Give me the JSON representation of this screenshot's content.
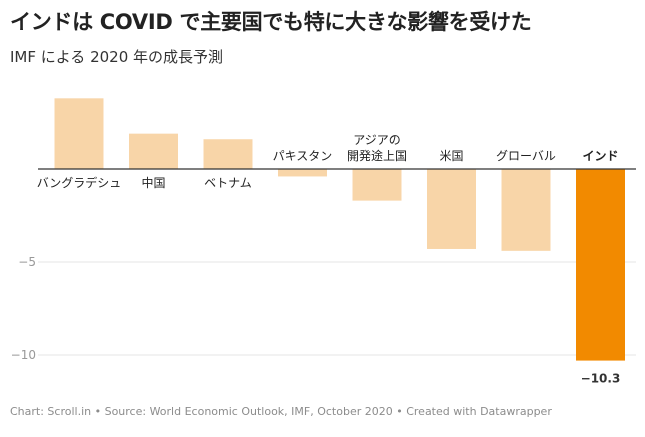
{
  "header": {
    "title": "インドは COVID で主要国でも特に大きな影響を受けた",
    "subtitle": "IMF による 2020 年の成長予測"
  },
  "footer": {
    "credit": "Chart: Scroll.in • Source: World Economic Outlook, IMF, October 2020 • Created with Datawrapper"
  },
  "chart_data": {
    "type": "bar",
    "title": "インドは COVID で主要国でも特に大きな影響を受けた",
    "subtitle": "IMF による 2020 年の成長予測",
    "categories": [
      "バングラデシュ",
      "中国",
      "ベトナム",
      "パキスタン",
      "アジアの 開発途上国",
      "米国",
      "グローバル",
      "インド"
    ],
    "values": [
      3.8,
      1.9,
      1.6,
      -0.4,
      -1.7,
      -4.3,
      -4.4,
      -10.3
    ],
    "highlight_index": 7,
    "highlight_label": "−10.3",
    "y_ticks": [
      -5,
      -10
    ],
    "y_tick_labels": [
      "−5",
      "−10"
    ],
    "ylim": [
      -10.3,
      3.8
    ],
    "grid": true,
    "colors": {
      "default_bar": "#f8d5a8",
      "highlight_bar": "#f28a00",
      "gridline": "#e6e6e6",
      "zero_line": "#333333",
      "tick_text": "#999999"
    }
  }
}
